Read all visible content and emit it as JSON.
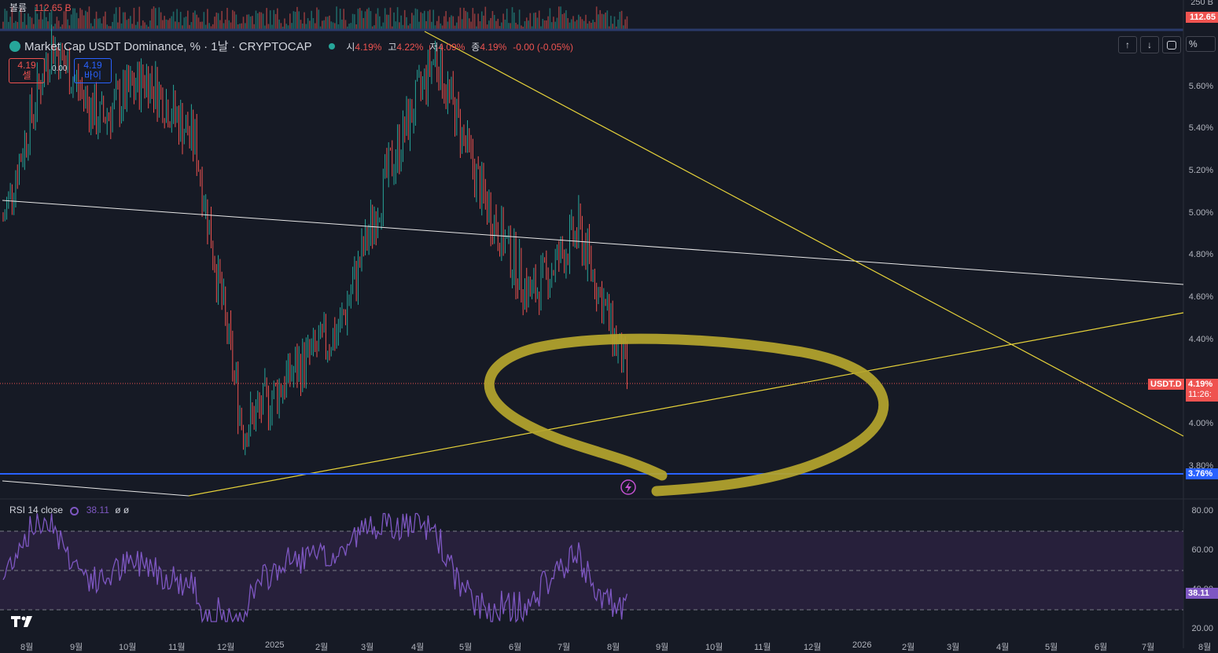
{
  "volume": {
    "label": "볼륨",
    "value": "112.65 B",
    "scale_top": "250 B",
    "tag": "112.65"
  },
  "header": {
    "title": "Market Cap USDT Dominance, % · 1날 · CRYPTOCAP",
    "open_label": "시",
    "open": "4.19%",
    "high_label": "고",
    "high": "4.22%",
    "low_label": "저",
    "low": "4.09%",
    "close_label": "종",
    "close": "4.19%",
    "change": "-0.00 (-0.05%)"
  },
  "trade": {
    "sell_price": "4.19",
    "sell_label": "셀",
    "spread": "0.00",
    "buy_price": "4.19",
    "buy_label": "바이"
  },
  "buttons": {
    "up": "↑",
    "down": "↓",
    "scale_pct": "%"
  },
  "colors": {
    "up": "#26a69a",
    "down": "#ef5350",
    "rsi": "#7e57c2",
    "trend_yellow": "#f2e13a",
    "support_blue": "#2962ff",
    "highlight": "#b5a52c"
  },
  "price_axis": {
    "ticks": [
      "5.60%",
      "5.40%",
      "5.20%",
      "5.00%",
      "4.80%",
      "4.60%",
      "4.40%",
      "4.00%",
      "3.80%"
    ],
    "symbol_tag": "USDT.D",
    "last_price": "4.19%",
    "countdown": "11:26:",
    "support": "3.76%"
  },
  "rsi": {
    "label": "RSI 14 close",
    "value": "38.11",
    "extra": "ø ø",
    "ticks": [
      "80.00",
      "60.00",
      "40.00",
      "20.00"
    ],
    "tag": "38.11"
  },
  "x_ticks": [
    "8월",
    "9월",
    "10월",
    "11월",
    "12월",
    "2025",
    "2월",
    "3월",
    "4월",
    "5월",
    "6월",
    "7월",
    "8월",
    "9월",
    "10월",
    "11월",
    "12월",
    "2026",
    "2월",
    "3월",
    "4월",
    "5월",
    "6월",
    "7월",
    "8월"
  ],
  "chart_data": {
    "type": "candlestick",
    "title": "Market Cap USDT Dominance, % · 1날 · CRYPTOCAP",
    "y_unit": "%",
    "ylim": [
      3.6,
      5.8
    ],
    "last": {
      "open": 4.19,
      "high": 4.22,
      "low": 4.09,
      "close": 4.19
    },
    "price_path": [
      {
        "month": "2024-07",
        "value": 4.9
      },
      {
        "month": "2024-08",
        "value": 5.7
      },
      {
        "month": "2024-09",
        "value": 5.35
      },
      {
        "month": "2024-10",
        "value": 5.55
      },
      {
        "month": "2024-11",
        "value": 5.25
      },
      {
        "month": "2024-12",
        "value": 3.95
      },
      {
        "month": "2025-01",
        "value": 4.2
      },
      {
        "month": "2025-02",
        "value": 4.4
      },
      {
        "month": "2025-03",
        "value": 5.1
      },
      {
        "month": "2025-04",
        "value": 5.65
      },
      {
        "month": "2025-05",
        "value": 5.0
      },
      {
        "month": "2025-06",
        "value": 4.55
      },
      {
        "month": "2025-07",
        "value": 4.85
      },
      {
        "month": "2025-08",
        "value": 4.19
      }
    ],
    "horizontal_levels": [
      {
        "value": 3.76,
        "color": "blue"
      }
    ],
    "rsi": {
      "period": 14,
      "last": 38.11,
      "ylim": [
        20,
        80
      ],
      "bands": [
        30,
        50,
        70
      ]
    }
  }
}
